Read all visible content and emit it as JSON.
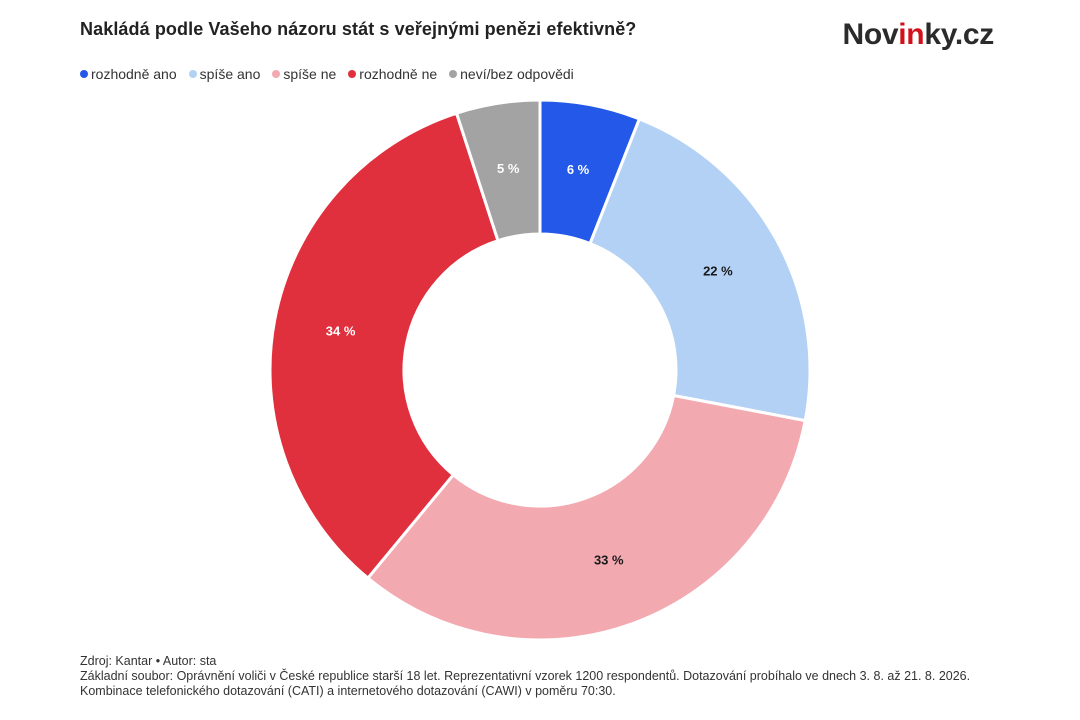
{
  "header": {
    "title": "Nakládá podle Vašeho názoru stát s veřejnými penězi efektivně?",
    "logo_prefix": "Nov",
    "logo_accent": "in",
    "logo_suffix": "ky.cz",
    "logo_accent_color": "#d0111b"
  },
  "chart_data": {
    "type": "pie",
    "variant": "donut",
    "title": "Nakládá podle Vašeho názoru stát s veřejnými penězi efektivně?",
    "legend_position": "top-left",
    "start_angle_deg": 0,
    "direction": "clockwise",
    "categories": [
      "rozhodně ano",
      "spíše ano",
      "spíše ne",
      "rozhodně ne",
      "neví/bez odpovědi"
    ],
    "values": [
      6,
      22,
      33,
      34,
      5
    ],
    "labels": [
      "6 %",
      "22 %",
      "33 %",
      "34 %",
      "5 %"
    ],
    "colors": [
      "#2358e8",
      "#b3d1f5",
      "#f3a9b0",
      "#e02f3d",
      "#a3a3a3"
    ],
    "label_colors": [
      "#ffffff",
      "#1a1a1a",
      "#1a1a1a",
      "#ffffff",
      "#ffffff"
    ]
  },
  "footer": {
    "source": "Zdroj: Kantar • Autor: sta",
    "note_line1": "Základní soubor: Oprávnění voliči v České republice starší 18 let. Reprezentativní vzorek 1200 respondentů. Dotazování probíhalo ve dnech 3. 8. až 21. 8. 2026.",
    "note_line2": "Kombinace telefonického dotazování (CATI) a internetového dotazování (CAWI) v poměru 70:30."
  }
}
